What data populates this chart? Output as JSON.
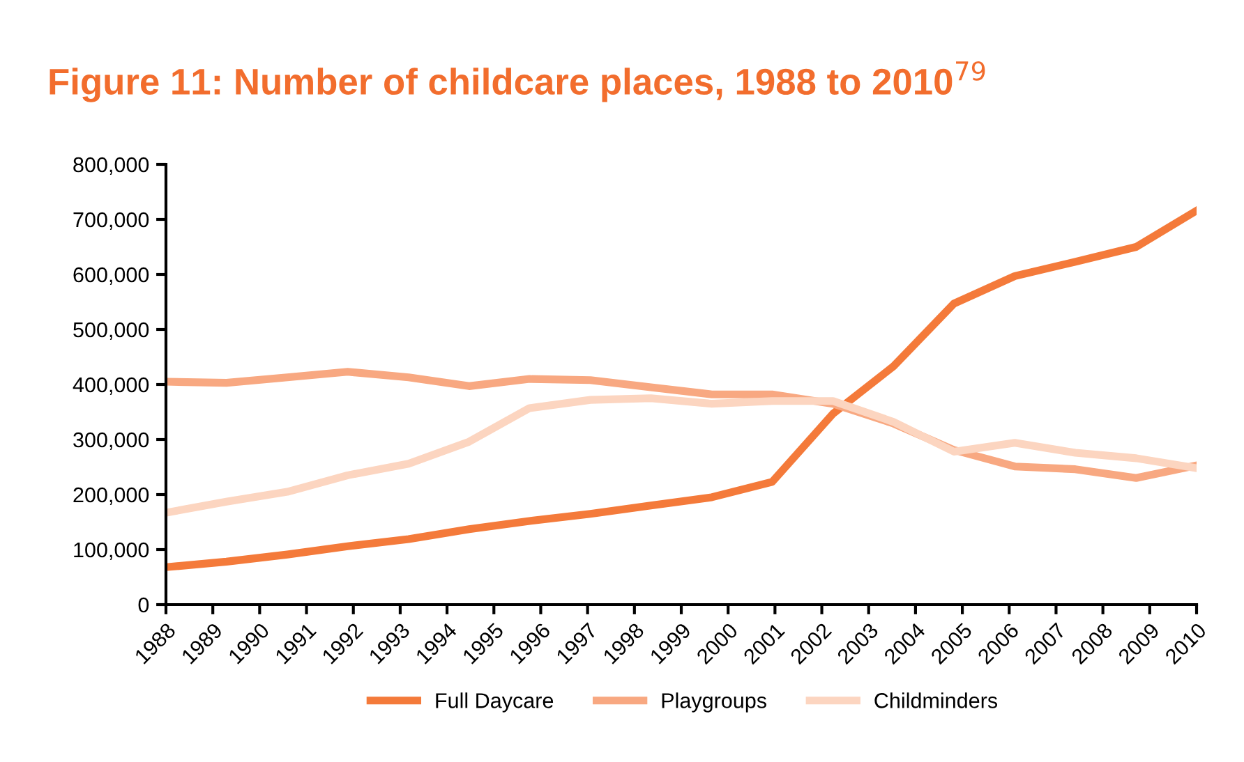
{
  "chart_data": {
    "type": "line",
    "title": "Figure 11: Number of childcare places, 1988 to 2010$^{79}$",
    "x": [
      1988,
      1989.29,
      1990.59,
      1991.88,
      1993.18,
      1994.47,
      1995.76,
      1997.06,
      1998.35,
      1999.65,
      2000.94,
      2002.24,
      2003.53,
      2004.82,
      2006.12,
      2007.41,
      2008.71,
      2010
    ],
    "series": [
      {
        "name": "Full Daycare",
        "color": "#f47a3a",
        "values": [
          68000,
          78000,
          91000,
          106000,
          119000,
          137000,
          152000,
          165000,
          180000,
          195000,
          223000,
          347000,
          433000,
          547000,
          597000,
          623000,
          650000,
          716000
        ]
      },
      {
        "name": "Playgroups",
        "color": "#f8a881",
        "values": [
          405000,
          403000,
          413000,
          423000,
          413000,
          397000,
          410000,
          408000,
          395000,
          382000,
          382000,
          365000,
          329000,
          281000,
          251000,
          246000,
          230000,
          253000
        ]
      },
      {
        "name": "Childminders",
        "color": "#fcd5c0",
        "values": [
          167000,
          187000,
          205000,
          235000,
          256000,
          296000,
          357000,
          372000,
          375000,
          365000,
          370000,
          370000,
          332000,
          278000,
          294000,
          276000,
          266000,
          248000
        ]
      }
    ],
    "xlim": [
      1988,
      2010
    ],
    "xticks": [
      1988,
      1989,
      1990,
      1991,
      1992,
      1993,
      1994,
      1995,
      1996,
      1997,
      1998,
      1999,
      2000,
      2001,
      2002,
      2003,
      2004,
      2005,
      2006,
      2007,
      2008,
      2009,
      2010
    ],
    "ylim": [
      0,
      800000
    ],
    "yticks": [
      0,
      {
        "value": 100000,
        "label": "100,000"
      },
      {
        "value": 200000,
        "label": "200,000"
      },
      {
        "value": 300000,
        "label": "300,000"
      },
      {
        "value": 400000,
        "label": "400,000"
      },
      {
        "value": 500000,
        "label": "500,000"
      },
      {
        "value": 600000,
        "label": "600,000"
      },
      {
        "value": 700000,
        "label": "700,000"
      },
      {
        "value": 800000,
        "label": "800,000"
      }
    ],
    "grid": false,
    "legend": "bottom",
    "marker": "none",
    "line_style": "solid"
  }
}
